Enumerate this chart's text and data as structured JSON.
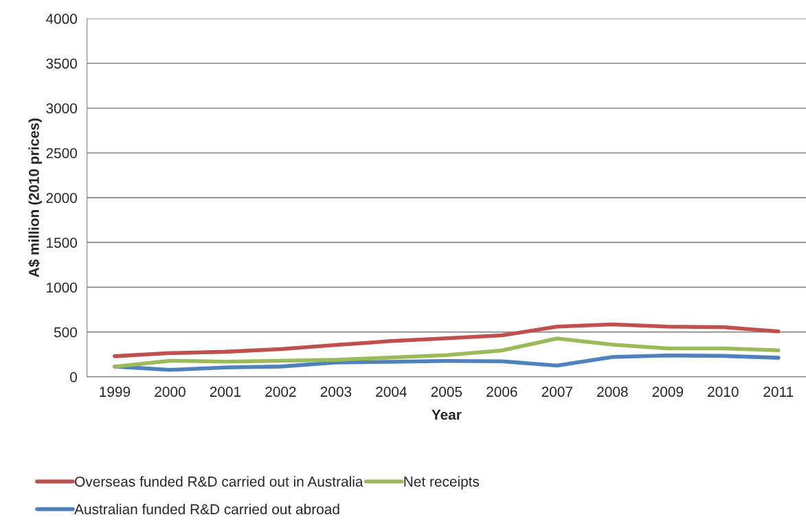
{
  "chart_data": {
    "type": "line",
    "xlabel": "Year",
    "ylabel": "A$ million (2010 prices)",
    "categories": [
      "1999",
      "2000",
      "2001",
      "2002",
      "2003",
      "2004",
      "2005",
      "2006",
      "2007",
      "2008",
      "2009",
      "2010",
      "2011"
    ],
    "series": [
      {
        "name": "Overseas funded R&D carried out in Australia",
        "color": "#c0504d",
        "values": [
          230,
          265,
          280,
          310,
          355,
          400,
          430,
          463,
          560,
          585,
          560,
          555,
          507
        ]
      },
      {
        "name": "Australian funded R&D carried out abroad",
        "color": "#4f81bd",
        "values": [
          115,
          78,
          105,
          115,
          160,
          168,
          177,
          174,
          125,
          221,
          238,
          234,
          213
        ]
      },
      {
        "name": "Net receipts",
        "color": "#9bbb59",
        "values": [
          115,
          180,
          170,
          180,
          190,
          216,
          242,
          294,
          429,
          359,
          317,
          317,
          296
        ]
      }
    ],
    "ylim": [
      0,
      4000
    ],
    "yticks": [
      0,
      500,
      1000,
      1500,
      2000,
      2500,
      3000,
      3500,
      4000
    ],
    "grid": "y",
    "legend": "bottom",
    "marker": "none",
    "line_style": "solid"
  }
}
